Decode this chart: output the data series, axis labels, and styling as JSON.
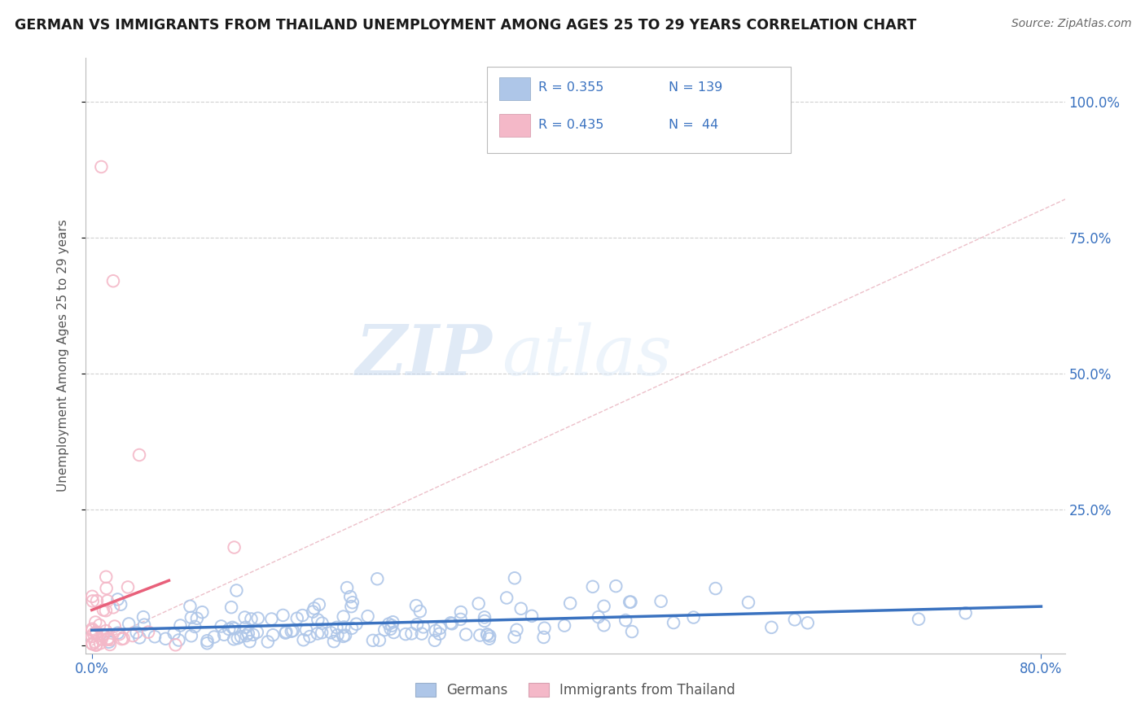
{
  "title": "GERMAN VS IMMIGRANTS FROM THAILAND UNEMPLOYMENT AMONG AGES 25 TO 29 YEARS CORRELATION CHART",
  "source": "Source: ZipAtlas.com",
  "ylabel": "Unemployment Among Ages 25 to 29 years",
  "xlim": [
    -0.005,
    0.82
  ],
  "ylim": [
    -0.015,
    1.08
  ],
  "grid_color": "#cccccc",
  "background_color": "#ffffff",
  "blue_dot_color": "#aec6e8",
  "pink_dot_color": "#f4b8c8",
  "blue_line_color": "#3a72c0",
  "pink_line_color": "#e8607a",
  "diag_line_color": "#e8b0bc",
  "label_color": "#3a72c0",
  "legend_R_blue": "0.355",
  "legend_N_blue": "139",
  "legend_R_pink": "0.435",
  "legend_N_pink": "44",
  "seed_blue": 42,
  "seed_pink": 99,
  "n_blue": 139,
  "n_pink": 44
}
